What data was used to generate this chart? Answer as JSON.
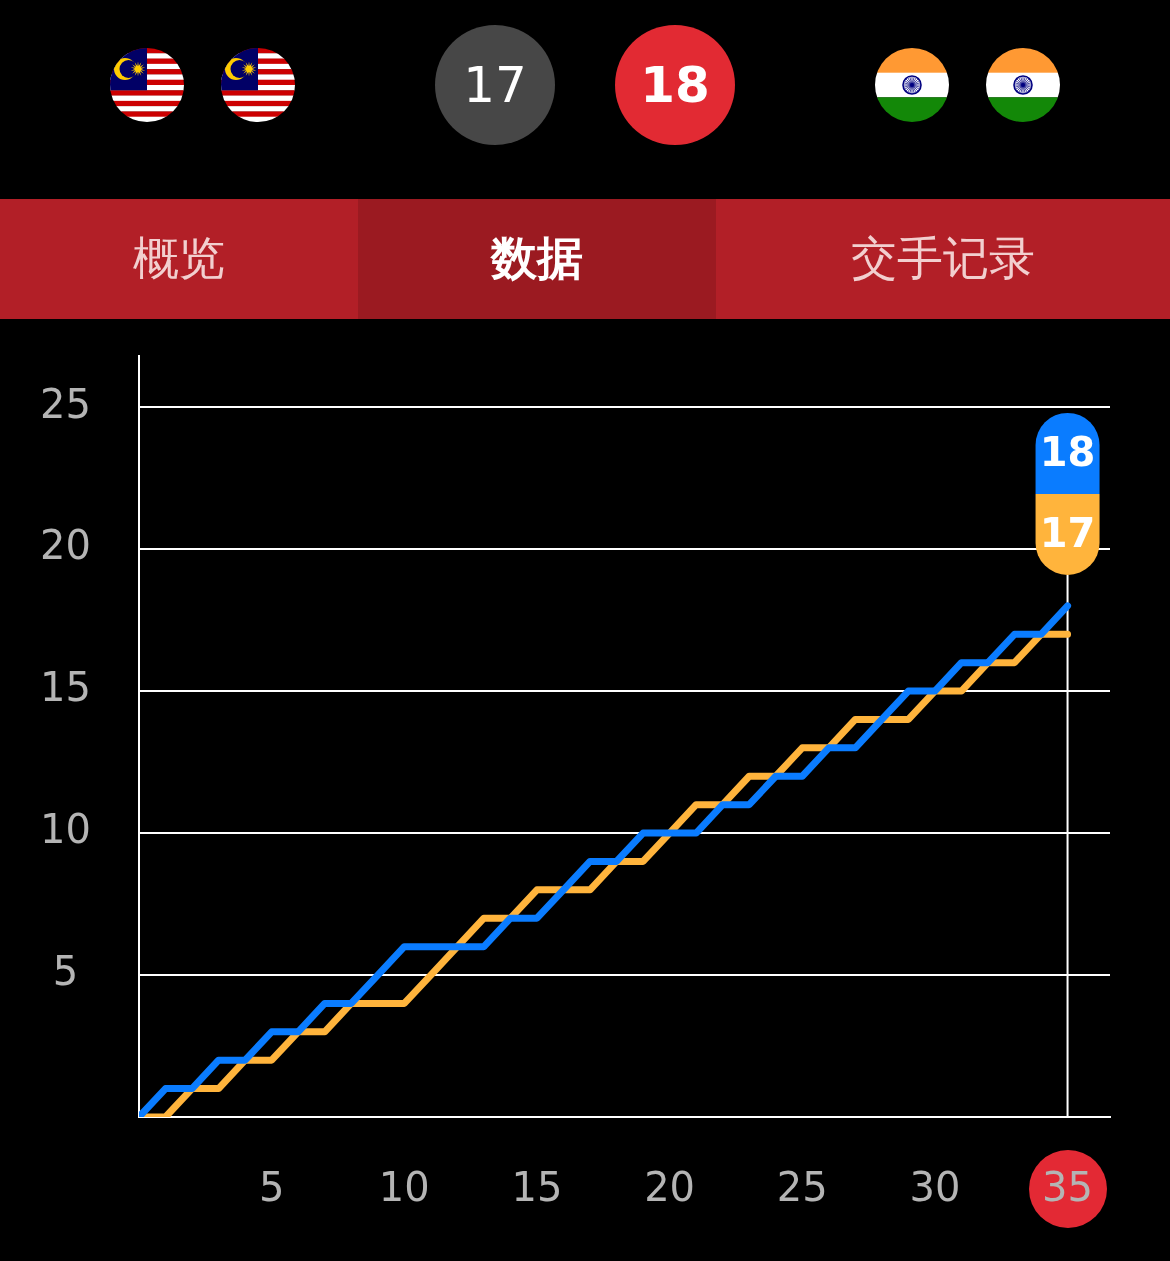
{
  "chart_data": [
    {
      "type": "other",
      "annotations": [
        "17",
        "18",
        "概览",
        "数据",
        "交手记录"
      ]
    },
    {
      "type": "line",
      "x": [
        0,
        1,
        2,
        3,
        4,
        5,
        6,
        7,
        8,
        9,
        10,
        11,
        12,
        13,
        14,
        15,
        16,
        17,
        18,
        19,
        20,
        21,
        22,
        23,
        24,
        25,
        26,
        27,
        28,
        29,
        30,
        31,
        32,
        33,
        34,
        35
      ],
      "series": [
        {
          "color": "#0a7cff",
          "values": [
            0,
            1,
            1,
            2,
            2,
            3,
            3,
            4,
            4,
            5,
            6,
            6,
            6,
            6,
            7,
            7,
            8,
            9,
            9,
            10,
            10,
            10,
            11,
            11,
            12,
            12,
            13,
            13,
            14,
            15,
            15,
            16,
            16,
            17,
            17,
            18
          ]
        },
        {
          "color": "#ffb43c",
          "values": [
            0,
            0,
            1,
            1,
            2,
            2,
            3,
            3,
            4,
            4,
            4,
            5,
            6,
            7,
            7,
            8,
            8,
            8,
            9,
            9,
            10,
            11,
            11,
            12,
            12,
            13,
            13,
            14,
            14,
            14,
            15,
            15,
            16,
            16,
            17,
            17
          ]
        }
      ],
      "xlim": [
        0,
        36.6
      ],
      "xticks": [
        5,
        10,
        15,
        20,
        25,
        30,
        35
      ],
      "ylim": [
        0,
        26.8
      ],
      "yticks": [
        5,
        10,
        15,
        20,
        25
      ],
      "grid": "y",
      "ref_lines": [
        {
          "axis": "x",
          "value": 35
        }
      ],
      "annotations": [
        "18",
        "17"
      ]
    }
  ]
}
